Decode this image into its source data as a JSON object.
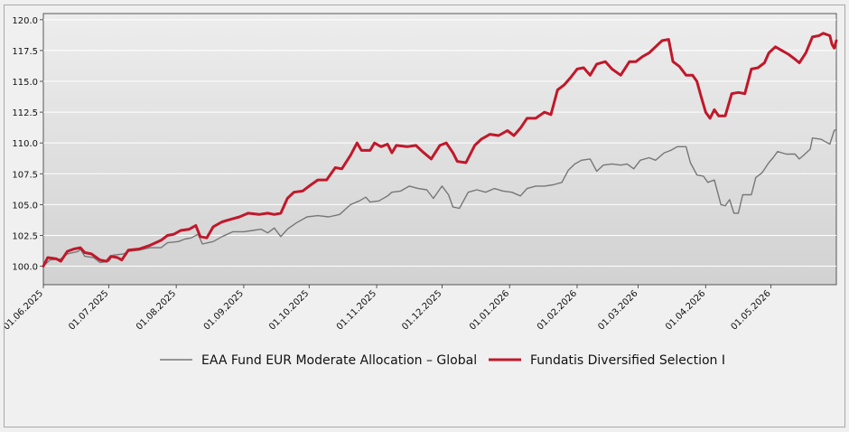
{
  "chart_data": {
    "type": "line",
    "title": "",
    "xlabel": "",
    "ylabel": "",
    "ylim": [
      98.5,
      120.5
    ],
    "y_ticks": [
      "100.0",
      "102.5",
      "105.0",
      "107.5",
      "110.0",
      "112.5",
      "115.0",
      "117.5",
      "120.0"
    ],
    "y_tick_values": [
      100,
      102.5,
      105,
      107.5,
      110,
      112.5,
      115,
      117.5,
      120
    ],
    "x_ticks": [
      "01.06.2025",
      "01.07.2025",
      "01.08.2025",
      "01.09.2025",
      "01.10.2025",
      "01.11.2025",
      "01.12.2025",
      "01.01.2026",
      "01.02.2026",
      "01.03.2026",
      "01.04.2026",
      "01.05.2026"
    ],
    "x_start": "2025-06-01",
    "x_end": "2026-05-31",
    "grid": true,
    "legend_position": "bottom",
    "series": [
      {
        "name": "EAA Fund EUR Moderate Allocation – Global",
        "color": "#777777",
        "width": 1.4,
        "points": [
          [
            "2025-06-01",
            100.0
          ],
          [
            "2025-06-04",
            100.5
          ],
          [
            "2025-06-09",
            100.6
          ],
          [
            "2025-06-12",
            101.0
          ],
          [
            "2025-06-17",
            101.2
          ],
          [
            "2025-06-18",
            101.4
          ],
          [
            "2025-06-20",
            100.8
          ],
          [
            "2025-06-24",
            100.7
          ],
          [
            "2025-06-27",
            100.3
          ],
          [
            "2025-07-01",
            100.4
          ],
          [
            "2025-07-03",
            100.9
          ],
          [
            "2025-07-08",
            101.0
          ],
          [
            "2025-07-10",
            101.2
          ],
          [
            "2025-07-15",
            101.3
          ],
          [
            "2025-07-20",
            101.5
          ],
          [
            "2025-07-25",
            101.5
          ],
          [
            "2025-07-28",
            101.9
          ],
          [
            "2025-08-02",
            102.0
          ],
          [
            "2025-08-05",
            102.2
          ],
          [
            "2025-08-08",
            102.3
          ],
          [
            "2025-08-11",
            102.6
          ],
          [
            "2025-08-13",
            101.8
          ],
          [
            "2025-08-18",
            102.0
          ],
          [
            "2025-08-22",
            102.4
          ],
          [
            "2025-08-27",
            102.8
          ],
          [
            "2025-09-01",
            102.8
          ],
          [
            "2025-09-05",
            102.9
          ],
          [
            "2025-09-09",
            103.0
          ],
          [
            "2025-09-12",
            102.7
          ],
          [
            "2025-09-15",
            103.1
          ],
          [
            "2025-09-18",
            102.4
          ],
          [
            "2025-09-21",
            103.0
          ],
          [
            "2025-09-25",
            103.5
          ],
          [
            "2025-09-30",
            104.0
          ],
          [
            "2025-10-05",
            104.1
          ],
          [
            "2025-10-10",
            104.0
          ],
          [
            "2025-10-15",
            104.2
          ],
          [
            "2025-10-20",
            105.0
          ],
          [
            "2025-10-24",
            105.3
          ],
          [
            "2025-10-27",
            105.6
          ],
          [
            "2025-10-29",
            105.2
          ],
          [
            "2025-11-02",
            105.3
          ],
          [
            "2025-11-06",
            105.7
          ],
          [
            "2025-11-08",
            106.0
          ],
          [
            "2025-11-12",
            106.1
          ],
          [
            "2025-11-16",
            106.5
          ],
          [
            "2025-11-20",
            106.3
          ],
          [
            "2025-11-24",
            106.2
          ],
          [
            "2025-11-27",
            105.5
          ],
          [
            "2025-12-01",
            106.5
          ],
          [
            "2025-12-04",
            105.8
          ],
          [
            "2025-12-06",
            104.8
          ],
          [
            "2025-12-09",
            104.7
          ],
          [
            "2025-12-13",
            106.0
          ],
          [
            "2025-12-17",
            106.2
          ],
          [
            "2025-12-21",
            106.0
          ],
          [
            "2025-12-25",
            106.3
          ],
          [
            "2025-12-29",
            106.1
          ],
          [
            "2026-01-02",
            106.0
          ],
          [
            "2026-01-06",
            105.7
          ],
          [
            "2026-01-09",
            106.3
          ],
          [
            "2026-01-13",
            106.5
          ],
          [
            "2026-01-17",
            106.5
          ],
          [
            "2026-01-21",
            106.6
          ],
          [
            "2026-01-25",
            106.8
          ],
          [
            "2026-01-28",
            107.8
          ],
          [
            "2026-01-31",
            108.3
          ],
          [
            "2026-02-03",
            108.6
          ],
          [
            "2026-02-07",
            108.7
          ],
          [
            "2026-02-10",
            107.7
          ],
          [
            "2026-02-13",
            108.2
          ],
          [
            "2026-02-17",
            108.3
          ],
          [
            "2026-02-21",
            108.2
          ],
          [
            "2026-02-24",
            108.3
          ],
          [
            "2026-02-27",
            107.9
          ],
          [
            "2026-03-02",
            108.6
          ],
          [
            "2026-03-06",
            108.8
          ],
          [
            "2026-03-09",
            108.6
          ],
          [
            "2026-03-13",
            109.2
          ],
          [
            "2026-03-16",
            109.4
          ],
          [
            "2026-03-19",
            109.7
          ],
          [
            "2026-03-23",
            109.7
          ],
          [
            "2026-03-25",
            108.4
          ],
          [
            "2026-03-28",
            107.4
          ],
          [
            "2026-03-31",
            107.3
          ],
          [
            "2026-04-02",
            106.8
          ],
          [
            "2026-04-05",
            107.0
          ],
          [
            "2026-04-08",
            105.0
          ],
          [
            "2026-04-10",
            104.9
          ],
          [
            "2026-04-12",
            105.4
          ],
          [
            "2026-04-14",
            104.3
          ],
          [
            "2026-04-16",
            104.3
          ],
          [
            "2026-04-18",
            105.8
          ],
          [
            "2026-04-22",
            105.8
          ],
          [
            "2026-04-24",
            107.2
          ],
          [
            "2026-04-27",
            107.6
          ],
          [
            "2026-04-30",
            108.4
          ],
          [
            "2026-05-02",
            108.8
          ],
          [
            "2026-05-04",
            109.3
          ],
          [
            "2026-05-08",
            109.1
          ],
          [
            "2026-05-12",
            109.1
          ],
          [
            "2026-05-14",
            108.7
          ],
          [
            "2026-05-16",
            109.0
          ],
          [
            "2026-05-19",
            109.5
          ],
          [
            "2026-05-20",
            110.4
          ],
          [
            "2026-05-24",
            110.3
          ],
          [
            "2026-05-26",
            110.1
          ],
          [
            "2026-05-28",
            109.9
          ],
          [
            "2026-05-30",
            111.0
          ],
          [
            "2026-05-31",
            111.1
          ]
        ]
      },
      {
        "name": "Fundatis Diversified Selection I",
        "color": "#c0182a",
        "width": 3,
        "points": [
          [
            "2025-06-01",
            100.0
          ],
          [
            "2025-06-03",
            100.7
          ],
          [
            "2025-06-07",
            100.6
          ],
          [
            "2025-06-09",
            100.4
          ],
          [
            "2025-06-12",
            101.2
          ],
          [
            "2025-06-15",
            101.4
          ],
          [
            "2025-06-18",
            101.5
          ],
          [
            "2025-06-20",
            101.1
          ],
          [
            "2025-06-23",
            101.0
          ],
          [
            "2025-06-27",
            100.5
          ],
          [
            "2025-06-30",
            100.4
          ],
          [
            "2025-07-02",
            100.8
          ],
          [
            "2025-07-05",
            100.7
          ],
          [
            "2025-07-07",
            100.5
          ],
          [
            "2025-07-10",
            101.3
          ],
          [
            "2025-07-15",
            101.4
          ],
          [
            "2025-07-20",
            101.7
          ],
          [
            "2025-07-25",
            102.1
          ],
          [
            "2025-07-28",
            102.5
          ],
          [
            "2025-07-31",
            102.6
          ],
          [
            "2025-08-03",
            102.9
          ],
          [
            "2025-08-07",
            103.0
          ],
          [
            "2025-08-10",
            103.3
          ],
          [
            "2025-08-12",
            102.4
          ],
          [
            "2025-08-15",
            102.3
          ],
          [
            "2025-08-18",
            103.2
          ],
          [
            "2025-08-22",
            103.6
          ],
          [
            "2025-08-26",
            103.8
          ],
          [
            "2025-08-30",
            104.0
          ],
          [
            "2025-09-03",
            104.3
          ],
          [
            "2025-09-08",
            104.2
          ],
          [
            "2025-09-12",
            104.3
          ],
          [
            "2025-09-15",
            104.2
          ],
          [
            "2025-09-18",
            104.3
          ],
          [
            "2025-09-21",
            105.5
          ],
          [
            "2025-09-24",
            106.0
          ],
          [
            "2025-09-28",
            106.1
          ],
          [
            "2025-10-01",
            106.5
          ],
          [
            "2025-10-05",
            107.0
          ],
          [
            "2025-10-09",
            107.0
          ],
          [
            "2025-10-13",
            108.0
          ],
          [
            "2025-10-16",
            107.9
          ],
          [
            "2025-10-20",
            109.0
          ],
          [
            "2025-10-23",
            110.0
          ],
          [
            "2025-10-25",
            109.4
          ],
          [
            "2025-10-29",
            109.4
          ],
          [
            "2025-10-31",
            110.0
          ],
          [
            "2025-11-03",
            109.7
          ],
          [
            "2025-11-06",
            109.9
          ],
          [
            "2025-11-08",
            109.2
          ],
          [
            "2025-11-10",
            109.8
          ],
          [
            "2025-11-15",
            109.7
          ],
          [
            "2025-11-19",
            109.8
          ],
          [
            "2025-11-22",
            109.3
          ],
          [
            "2025-11-26",
            108.7
          ],
          [
            "2025-11-30",
            109.8
          ],
          [
            "2025-12-03",
            110.0
          ],
          [
            "2025-12-06",
            109.2
          ],
          [
            "2025-12-08",
            108.5
          ],
          [
            "2025-12-12",
            108.4
          ],
          [
            "2025-12-16",
            109.8
          ],
          [
            "2025-12-19",
            110.3
          ],
          [
            "2025-12-23",
            110.7
          ],
          [
            "2025-12-27",
            110.6
          ],
          [
            "2025-12-31",
            111.0
          ],
          [
            "2026-01-03",
            110.6
          ],
          [
            "2026-01-06",
            111.2
          ],
          [
            "2026-01-09",
            112.0
          ],
          [
            "2026-01-13",
            112.0
          ],
          [
            "2026-01-17",
            112.5
          ],
          [
            "2026-01-20",
            112.3
          ],
          [
            "2026-01-23",
            114.3
          ],
          [
            "2026-01-26",
            114.7
          ],
          [
            "2026-01-29",
            115.3
          ],
          [
            "2026-02-01",
            116.0
          ],
          [
            "2026-02-04",
            116.1
          ],
          [
            "2026-02-07",
            115.5
          ],
          [
            "2026-02-10",
            116.4
          ],
          [
            "2026-02-14",
            116.6
          ],
          [
            "2026-02-17",
            116.0
          ],
          [
            "2026-02-21",
            115.5
          ],
          [
            "2026-02-25",
            116.6
          ],
          [
            "2026-02-28",
            116.6
          ],
          [
            "2026-03-03",
            117.0
          ],
          [
            "2026-03-06",
            117.3
          ],
          [
            "2026-03-09",
            117.8
          ],
          [
            "2026-03-12",
            118.3
          ],
          [
            "2026-03-15",
            118.4
          ],
          [
            "2026-03-17",
            116.6
          ],
          [
            "2026-03-20",
            116.2
          ],
          [
            "2026-03-23",
            115.5
          ],
          [
            "2026-03-26",
            115.5
          ],
          [
            "2026-03-28",
            115.0
          ],
          [
            "2026-03-30",
            113.7
          ],
          [
            "2026-04-01",
            112.5
          ],
          [
            "2026-04-03",
            112.0
          ],
          [
            "2026-04-05",
            112.7
          ],
          [
            "2026-04-07",
            112.2
          ],
          [
            "2026-04-10",
            112.2
          ],
          [
            "2026-04-13",
            114.0
          ],
          [
            "2026-04-16",
            114.1
          ],
          [
            "2026-04-19",
            114.0
          ],
          [
            "2026-04-22",
            116.0
          ],
          [
            "2026-04-25",
            116.1
          ],
          [
            "2026-04-28",
            116.5
          ],
          [
            "2026-04-30",
            117.3
          ],
          [
            "2026-05-03",
            117.8
          ],
          [
            "2026-05-06",
            117.5
          ],
          [
            "2026-05-09",
            117.2
          ],
          [
            "2026-05-12",
            116.8
          ],
          [
            "2026-05-14",
            116.5
          ],
          [
            "2026-05-17",
            117.3
          ],
          [
            "2026-05-20",
            118.6
          ],
          [
            "2026-05-23",
            118.7
          ],
          [
            "2026-05-25",
            118.9
          ],
          [
            "2026-05-28",
            118.7
          ],
          [
            "2026-05-29",
            118.0
          ],
          [
            "2026-05-30",
            117.7
          ],
          [
            "2026-05-31",
            118.3
          ]
        ]
      }
    ]
  },
  "colors": {
    "frame_border": "#a9a9a9",
    "plot_gradient_top": "#ededed",
    "plot_gradient_bottom": "#d2d2d2",
    "grid": "#ffffff"
  }
}
